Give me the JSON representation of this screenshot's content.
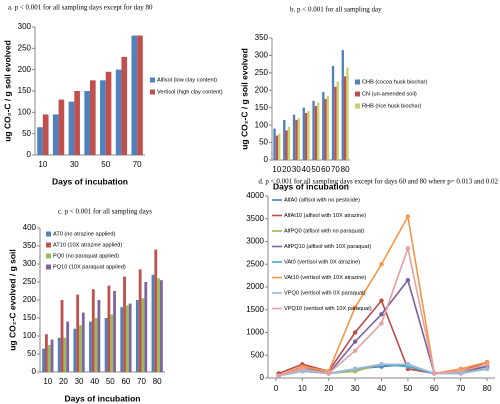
{
  "chart_data": [
    {
      "type": "bar",
      "title": "a. p < 0.001 for  all sampling days except for day 80",
      "y_label": "ug CO₂-C / g soil evolved",
      "x_label": "Days of incubation",
      "categories": [
        "10",
        null,
        "30",
        null,
        "50",
        null,
        "70"
      ],
      "series": [
        {
          "name": "Alfisol (low clay content)",
          "color": "#4f81bd",
          "values": [
            65,
            95,
            125,
            150,
            175,
            200,
            280
          ]
        },
        {
          "name": "Vertisol (high clay content)",
          "color": "#c0504d",
          "values": [
            95,
            130,
            150,
            175,
            195,
            230,
            280
          ]
        }
      ],
      "ylim": [
        0,
        300
      ],
      "yticks": [
        0,
        50,
        100,
        150,
        200,
        250,
        300
      ],
      "legend": "right"
    },
    {
      "type": "bar",
      "title": "b. p < 0.001 for all sampling day",
      "y_label": "ug CO₂-C / g soil evolved",
      "x_label": "Days of incubation",
      "categories": [
        "10",
        "20",
        "30",
        "40",
        "50",
        "60",
        "70",
        "80"
      ],
      "series": [
        {
          "name": "CHB (cocoa husk biochar)",
          "color": "#4f81bd",
          "values": [
            90,
            115,
            130,
            150,
            170,
            195,
            270,
            315
          ]
        },
        {
          "name": "CN (un-amended soil)",
          "color": "#c0504d",
          "values": [
            70,
            85,
            115,
            135,
            155,
            175,
            210,
            240
          ]
        },
        {
          "name": "RHB (rice husk biochar)",
          "color": "#c5d36b",
          "values": [
            75,
            95,
            120,
            140,
            165,
            185,
            225,
            265
          ]
        }
      ],
      "ylim": [
        0,
        350
      ],
      "yticks": [
        0,
        50,
        100,
        150,
        200,
        250,
        300,
        350
      ],
      "legend": "right"
    },
    {
      "type": "bar",
      "title": "c. p < 0.001 for all sampling days",
      "y_label": "ug CO₂-C evolved / g soil",
      "x_label": "Days of incubation",
      "categories": [
        "10",
        "20",
        "30",
        "40",
        "50",
        "60",
        "70",
        "80"
      ],
      "series": [
        {
          "name": "AT0 (no atrazine applied)",
          "color": "#4f81bd",
          "values": [
            65,
            95,
            120,
            140,
            150,
            180,
            200,
            270
          ]
        },
        {
          "name": "AT10 (10X atrazine applied)",
          "color": "#c0504d",
          "values": [
            105,
            200,
            215,
            230,
            240,
            265,
            285,
            340
          ]
        },
        {
          "name": "PQ0 (no paraquat applied)",
          "color": "#9bbb59",
          "values": [
            75,
            95,
            130,
            150,
            160,
            185,
            205,
            260
          ]
        },
        {
          "name": "PQ10 (10X paraquat applied)",
          "color": "#8064a2",
          "values": [
            90,
            140,
            165,
            200,
            225,
            190,
            250,
            255
          ]
        }
      ],
      "ylim": [
        0,
        400
      ],
      "yticks": [
        0,
        50,
        100,
        150,
        200,
        250,
        300,
        350,
        400
      ],
      "legend": "upper left"
    },
    {
      "type": "line",
      "title": "d. p < 0.001 for all sampling days except for days 60 and 80 where p= 0.013 and 0.02",
      "x": [
        1,
        10,
        20,
        30,
        40,
        50,
        60,
        70,
        80
      ],
      "series": [
        {
          "name": "AlfA0 (alfisol with no pesticide)",
          "color": "#4a7ebb",
          "values": [
            50,
            250,
            100,
            200,
            250,
            300,
            100,
            150,
            250
          ]
        },
        {
          "name": "AlfAt10 (alfisol with 10X atrazine)",
          "color": "#be4b48",
          "values": [
            100,
            300,
            150,
            1000,
            1700,
            200,
            100,
            150,
            350
          ]
        },
        {
          "name": "AlfPQ0 (alfisol with no paraquat)",
          "color": "#98b954",
          "values": [
            50,
            150,
            100,
            150,
            300,
            250,
            100,
            150,
            200
          ]
        },
        {
          "name": "AlfPQ10 (alfisol with 10X paraquat)",
          "color": "#7d60a0",
          "values": [
            50,
            200,
            100,
            800,
            1400,
            2150,
            100,
            150,
            250
          ]
        },
        {
          "name": "VAt0 (vertisol with 0X atrazine)",
          "color": "#46aac5",
          "values": [
            50,
            150,
            100,
            200,
            300,
            250,
            100,
            100,
            200
          ]
        },
        {
          "name": "VAt10 (vertisol with 10X atrazine)",
          "color": "#f79646",
          "values": [
            50,
            250,
            150,
            1550,
            2500,
            3550,
            100,
            200,
            350
          ]
        },
        {
          "name": "VPQ0 (vertisol with 0X paraquat)",
          "color": "#9cb8e0",
          "values": [
            50,
            150,
            100,
            200,
            300,
            300,
            100,
            100,
            200
          ]
        },
        {
          "name": "VPQ10 (vertisol with 10X paraquat)",
          "color": "#e6a0a0",
          "values": [
            50,
            200,
            100,
            600,
            1200,
            2850,
            100,
            150,
            300
          ]
        }
      ],
      "xlim": [
        -3,
        83
      ],
      "xticks": [
        0,
        10,
        20,
        30,
        40,
        50,
        60,
        70,
        80
      ],
      "ylim": [
        0,
        4000
      ],
      "yticks": [
        0,
        500,
        1000,
        1500,
        2000,
        2500,
        3000,
        3500,
        4000
      ],
      "legend": "upper left"
    }
  ]
}
